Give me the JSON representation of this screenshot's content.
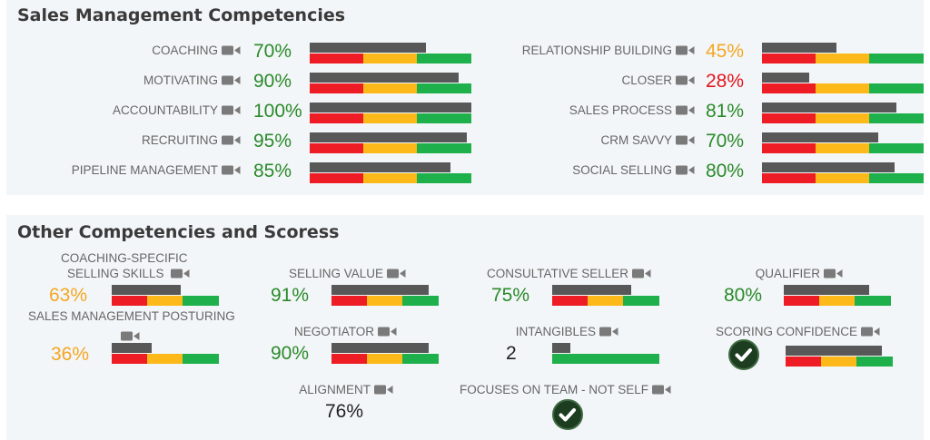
{
  "colors": {
    "green_text": "#2a8a2a",
    "orange_text": "#f5a623",
    "red_text": "#e3141c",
    "black_text": "#222222",
    "bar_dark": "#585858",
    "zone_red": "#ee1c24",
    "zone_yellow": "#fcb919",
    "zone_green": "#1eb04b"
  },
  "section1": {
    "title": "Sales Management Competencies",
    "left": [
      {
        "label": "COACHING",
        "value": "70%",
        "level": 0.72,
        "tone": "green"
      },
      {
        "label": "MOTIVATING",
        "value": "90%",
        "level": 0.92,
        "tone": "green"
      },
      {
        "label": "ACCOUNTABILITY",
        "value": "100%",
        "level": 1.0,
        "tone": "green"
      },
      {
        "label": "RECRUITING",
        "value": "95%",
        "level": 0.97,
        "tone": "green"
      },
      {
        "label": "PIPELINE MANAGEMENT",
        "value": "85%",
        "level": 0.87,
        "tone": "green"
      }
    ],
    "right": [
      {
        "label": "RELATIONSHIP BUILDING",
        "value": "45%",
        "level": 0.46,
        "tone": "orange"
      },
      {
        "label": "CLOSER",
        "value": "28%",
        "level": 0.29,
        "tone": "red"
      },
      {
        "label": "SALES PROCESS",
        "value": "81%",
        "level": 0.83,
        "tone": "green"
      },
      {
        "label": "CRM SAVVY",
        "value": "70%",
        "level": 0.72,
        "tone": "green"
      },
      {
        "label": "SOCIAL SELLING",
        "value": "80%",
        "level": 0.82,
        "tone": "green"
      }
    ]
  },
  "section2": {
    "title": "Other Competencies and Scoress",
    "coaching_specific": {
      "label_line1": "COACHING-SPECIFIC",
      "label_line2": "SELLING SKILLS",
      "value": "63%",
      "level": 0.64
    },
    "sales_mgmt_posturing": {
      "label": "SALES MANAGEMENT POSTURING",
      "value": "36%",
      "level": 0.37
    },
    "selling_value": {
      "label": "SELLING VALUE",
      "value": "91%",
      "level": 0.91
    },
    "negotiator": {
      "label": "NEGOTIATOR",
      "value": "90%",
      "level": 0.91
    },
    "alignment": {
      "label": "ALIGNMENT",
      "value": "76%"
    },
    "consultative_seller": {
      "label": "CONSULTATIVE SELLER",
      "value": "75%",
      "level": 0.74
    },
    "intangibles": {
      "label": "INTANGIBLES",
      "value": "2",
      "level": 0.17
    },
    "focuses_on_team": {
      "label": "FOCUSES ON TEAM - NOT SELF"
    },
    "qualifier": {
      "label": "QUALIFIER",
      "value": "80%",
      "level": 0.8
    },
    "scoring_confidence": {
      "label": "SCORING CONFIDENCE",
      "level": 0.9
    }
  },
  "icons": {
    "video": "video-camera-icon",
    "check": "check-circle-icon"
  }
}
